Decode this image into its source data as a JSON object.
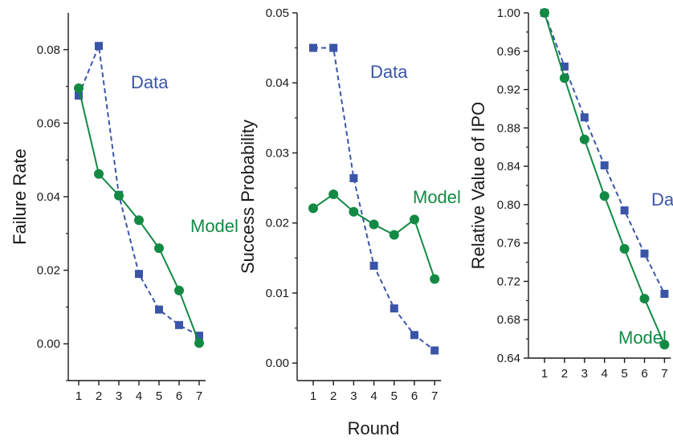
{
  "figure": {
    "shared_xlabel": "Round",
    "colors": {
      "data": "#3a55a8",
      "model": "#128a44",
      "axis": "#1a1a1a"
    }
  },
  "chart_data": [
    {
      "type": "line",
      "ylabel": "Failure Rate",
      "x": [
        1,
        2,
        3,
        4,
        5,
        6,
        7
      ],
      "ylim": [
        -0.01,
        0.09
      ],
      "yticks": [
        0.0,
        0.02,
        0.04,
        0.06,
        0.08
      ],
      "ytick_labels": [
        "0.00",
        "0.02",
        "0.04",
        "0.06",
        "0.08"
      ],
      "grid": false,
      "series": [
        {
          "name": "Data",
          "marker": "square",
          "linestyle": "dashed",
          "values": [
            0.0675,
            0.081,
            0.0405,
            0.019,
            0.0093,
            0.0051,
            0.0022
          ]
        },
        {
          "name": "Model",
          "marker": "circle",
          "linestyle": "solid",
          "values": [
            0.0695,
            0.0462,
            0.0403,
            0.0336,
            0.026,
            0.0145,
            0.0002
          ]
        }
      ]
    },
    {
      "type": "line",
      "ylabel": "Success Probability",
      "x": [
        1,
        2,
        3,
        4,
        5,
        6,
        7
      ],
      "ylim": [
        -0.0025,
        0.05
      ],
      "yticks": [
        0.0,
        0.01,
        0.02,
        0.03,
        0.04,
        0.05
      ],
      "ytick_labels": [
        "0.00",
        "0.01",
        "0.02",
        "0.03",
        "0.04",
        "0.05"
      ],
      "grid": false,
      "series": [
        {
          "name": "Data",
          "marker": "square",
          "linestyle": "dashed",
          "values": [
            0.045,
            0.045,
            0.0264,
            0.0139,
            0.0078,
            0.004,
            0.0018
          ]
        },
        {
          "name": "Model",
          "marker": "circle",
          "linestyle": "solid",
          "values": [
            0.0221,
            0.0241,
            0.0216,
            0.0198,
            0.0183,
            0.0205,
            0.012
          ]
        }
      ]
    },
    {
      "type": "line",
      "ylabel": "Relative Value of IPO",
      "x": [
        1,
        2,
        3,
        4,
        5,
        6,
        7
      ],
      "ylim": [
        0.64,
        1.0
      ],
      "yticks": [
        0.64,
        0.68,
        0.72,
        0.76,
        0.8,
        0.84,
        0.88,
        0.92,
        0.96,
        1.0
      ],
      "ytick_labels": [
        "0.64",
        "0.68",
        "0.72",
        "0.76",
        "0.80",
        "0.84",
        "0.88",
        "0.92",
        "0.96",
        "1.00"
      ],
      "grid": false,
      "series": [
        {
          "name": "Data",
          "marker": "square",
          "linestyle": "dashed",
          "values": [
            1.0,
            0.944,
            0.891,
            0.841,
            0.794,
            0.749,
            0.707
          ]
        },
        {
          "name": "Model",
          "marker": "circle",
          "linestyle": "solid",
          "values": [
            1.0,
            0.932,
            0.868,
            0.809,
            0.754,
            0.702,
            0.654
          ]
        }
      ]
    }
  ]
}
